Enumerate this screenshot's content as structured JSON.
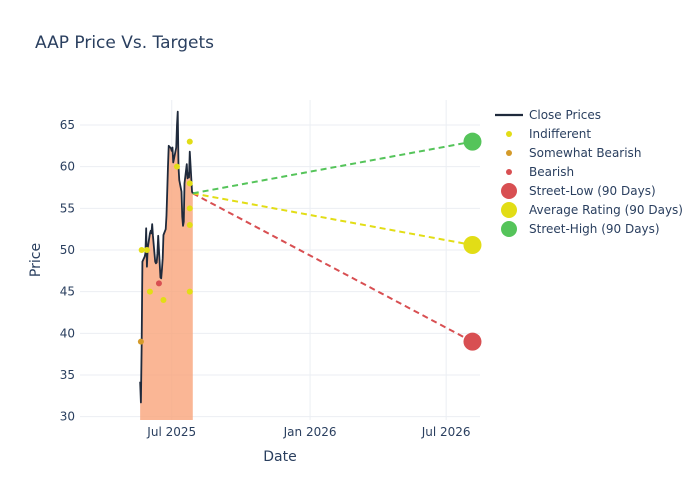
{
  "chart_data": {
    "type": "line",
    "title": "AAP Price Vs. Targets",
    "xlabel": "Date",
    "ylabel": "Price",
    "x_range": [
      "2025-03-01",
      "2026-08-15"
    ],
    "ylim": [
      29.6,
      68.0
    ],
    "x_ticks": [
      {
        "date": "2025-07-01",
        "label": "Jul 2025"
      },
      {
        "date": "2026-01-01",
        "label": "Jan 2026"
      },
      {
        "date": "2026-07-01",
        "label": "Jul 2026"
      }
    ],
    "y_ticks": [
      30,
      35,
      40,
      45,
      50,
      55,
      60,
      65
    ],
    "grid": true,
    "legend_position": "top-right",
    "close_prices": {
      "name": "Close Prices",
      "color": "#1f2a3c",
      "fill_color": "#f9a47a",
      "points": [
        [
          "2025-05-20",
          34.2
        ],
        [
          "2025-05-21",
          31.7
        ],
        [
          "2025-05-22",
          38.5
        ],
        [
          "2025-05-23",
          48.6
        ],
        [
          "2025-05-26",
          49.2
        ],
        [
          "2025-05-27",
          49.6
        ],
        [
          "2025-05-28",
          52.6
        ],
        [
          "2025-05-29",
          48.0
        ],
        [
          "2025-05-30",
          50.2
        ],
        [
          "2025-06-02",
          52.0
        ],
        [
          "2025-06-03",
          52.3
        ],
        [
          "2025-06-04",
          52.0
        ],
        [
          "2025-06-05",
          53.1
        ],
        [
          "2025-06-06",
          51.7
        ],
        [
          "2025-06-09",
          48.6
        ],
        [
          "2025-06-10",
          48.4
        ],
        [
          "2025-06-11",
          48.5
        ],
        [
          "2025-06-12",
          49.6
        ],
        [
          "2025-06-13",
          51.7
        ],
        [
          "2025-06-16",
          46.7
        ],
        [
          "2025-06-17",
          46.6
        ],
        [
          "2025-06-18",
          47.7
        ],
        [
          "2025-06-19",
          49.0
        ],
        [
          "2025-06-20",
          51.8
        ],
        [
          "2025-06-23",
          52.5
        ],
        [
          "2025-06-24",
          54.1
        ],
        [
          "2025-06-25",
          57.0
        ],
        [
          "2025-06-26",
          60.0
        ],
        [
          "2025-06-27",
          62.5
        ],
        [
          "2025-06-30",
          62.2
        ],
        [
          "2025-07-01",
          61.9
        ],
        [
          "2025-07-02",
          62.3
        ],
        [
          "2025-07-03",
          60.5
        ],
        [
          "2025-07-07",
          62.3
        ],
        [
          "2025-07-08",
          65.0
        ],
        [
          "2025-07-09",
          66.6
        ],
        [
          "2025-07-10",
          60.0
        ],
        [
          "2025-07-11",
          58.4
        ],
        [
          "2025-07-14",
          57.0
        ],
        [
          "2025-07-15",
          54.0
        ],
        [
          "2025-07-16",
          52.9
        ],
        [
          "2025-07-17",
          53.4
        ],
        [
          "2025-07-18",
          58.0
        ],
        [
          "2025-07-21",
          60.3
        ],
        [
          "2025-07-22",
          58.6
        ],
        [
          "2025-07-23",
          59.2
        ],
        [
          "2025-07-24",
          58.7
        ],
        [
          "2025-07-25",
          61.8
        ],
        [
          "2025-07-28",
          57.0
        ],
        [
          "2025-07-29",
          56.8
        ]
      ]
    },
    "ratings": [
      {
        "name": "Indifferent",
        "color": "#e2dd16",
        "points": [
          [
            "2025-05-22",
            50.0
          ],
          [
            "2025-05-29",
            50.0
          ],
          [
            "2025-06-02",
            45.0
          ],
          [
            "2025-06-20",
            44.0
          ],
          [
            "2025-07-08",
            60.0
          ],
          [
            "2025-07-25",
            63.0
          ],
          [
            "2025-07-25",
            58.0
          ],
          [
            "2025-07-25",
            55.0
          ],
          [
            "2025-07-25",
            53.0
          ],
          [
            "2025-07-25",
            45.0
          ]
        ]
      },
      {
        "name": "Somewhat Bearish",
        "color": "#d49a2a",
        "points": [
          [
            "2025-05-21",
            39.0
          ]
        ]
      },
      {
        "name": "Bearish",
        "color": "#d84f52",
        "points": [
          [
            "2025-06-14",
            46.0
          ]
        ]
      }
    ],
    "targets": {
      "start": [
        "2025-07-29",
        56.8
      ],
      "end_date": "2026-08-05",
      "series": [
        {
          "name": "Street-Low (90 Days)",
          "value": 39.0,
          "color": "#d84f52"
        },
        {
          "name": "Average Rating (90 Days)",
          "value": 50.6,
          "color": "#e2dd16"
        },
        {
          "name": "Street-High (90 Days)",
          "value": 63.0,
          "color": "#55c45a"
        }
      ]
    }
  }
}
